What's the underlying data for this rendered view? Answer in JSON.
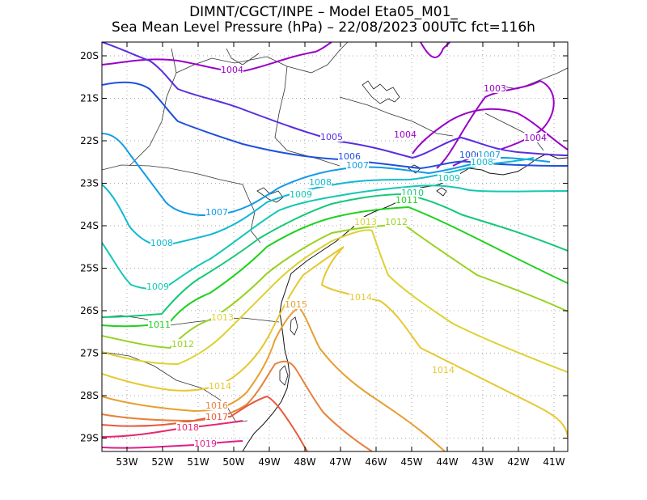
{
  "header": {
    "line1": "DIMNT/CGCT/INPE –  Model Eta05_M01_",
    "line2": "Sea Mean Level Pressure (hPa) – 22/08/2023 00UTC fct=116h"
  },
  "axes": {
    "lon_ticks": [
      "53W",
      "52W",
      "51W",
      "50W",
      "49W",
      "48W",
      "47W",
      "46W",
      "45W",
      "44W",
      "43W",
      "42W",
      "41W"
    ],
    "lat_ticks": [
      "20S",
      "21S",
      "22S",
      "23S",
      "24S",
      "25S",
      "26S",
      "27S",
      "28S",
      "29S"
    ],
    "lon_range": [
      -53.7,
      -40.5
    ],
    "lat_range": [
      -29.45,
      -19.9
    ],
    "grid": "dotted"
  },
  "contours": [
    {
      "value": 1003,
      "color": "#9a00c8",
      "label": "1003"
    },
    {
      "value": 1004,
      "color": "#9a00c8",
      "label": "1004"
    },
    {
      "value": 1005,
      "color": "#5a2de0",
      "label": "1005"
    },
    {
      "value": 1006,
      "color": "#1e50dc",
      "label": "1006"
    },
    {
      "value": 1007,
      "color": "#149be6",
      "label": "1007"
    },
    {
      "value": 1008,
      "color": "#0fb9d2",
      "label": "1008"
    },
    {
      "value": 1009,
      "color": "#14c8b4",
      "label": "1009"
    },
    {
      "value": 1010,
      "color": "#14c878",
      "label": "1010"
    },
    {
      "value": 1011,
      "color": "#1ed21e",
      "label": "1011"
    },
    {
      "value": 1012,
      "color": "#96d21e",
      "label": "1012"
    },
    {
      "value": 1013,
      "color": "#dcd232",
      "label": "1013"
    },
    {
      "value": 1014,
      "color": "#e6c832",
      "label": "1014"
    },
    {
      "value": 1015,
      "color": "#e6a032",
      "label": "1015"
    },
    {
      "value": 1016,
      "color": "#e6823c",
      "label": "1016"
    },
    {
      "value": 1017,
      "color": "#e65a3c",
      "label": "1017"
    },
    {
      "value": 1018,
      "color": "#e6286e",
      "label": "1018"
    },
    {
      "value": 1019,
      "color": "#dc1e8c",
      "label": "1019"
    }
  ]
}
